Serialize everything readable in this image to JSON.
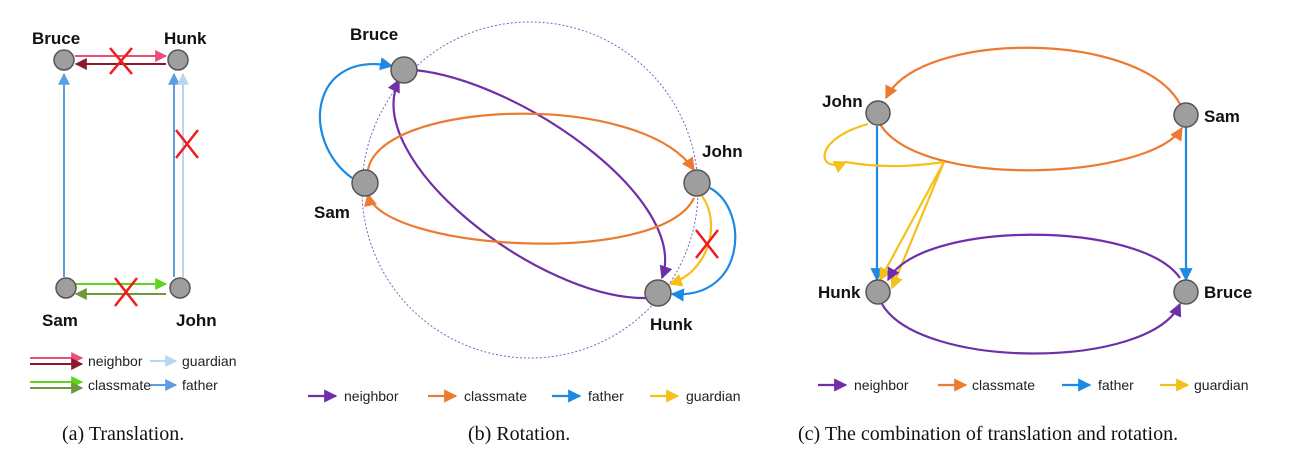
{
  "colors": {
    "neighbor_a": "#e8507a",
    "neighbor_b": "#8b1a2a",
    "classmate_a": "#5fd41c",
    "classmate_b": "#6a9a3a",
    "guardian_a": "#b9d6ee",
    "father_a": "#5b9fe0",
    "neighbor": "#6e2fa8",
    "classmate": "#ec7a30",
    "father": "#1a8ae6",
    "guardian": "#f5c01a",
    "cross": "#ee1c1c"
  },
  "panels": [
    {
      "caption": "(a)  Translation.",
      "nodes": {
        "bruce": "Bruce",
        "hunk": "Hunk",
        "sam": "Sam",
        "john": "John"
      },
      "legend": {
        "neighbor": "neighbor",
        "classmate": "classmate",
        "guardian": "guardian",
        "father": "father"
      }
    },
    {
      "caption": "(b)  Rotation.",
      "nodes": {
        "bruce": "Bruce",
        "john": "John",
        "sam": "Sam",
        "hunk": "Hunk"
      },
      "legend": {
        "neighbor": "neighbor",
        "classmate": "classmate",
        "father": "father",
        "guardian": "guardian"
      }
    },
    {
      "caption": "(c)  The combination of translation and rotation.",
      "nodes": {
        "john": "John",
        "sam": "Sam",
        "hunk": "Hunk",
        "bruce": "Bruce"
      },
      "legend": {
        "neighbor": "neighbor",
        "classmate": "classmate",
        "father": "father",
        "guardian": "guardian"
      }
    }
  ]
}
